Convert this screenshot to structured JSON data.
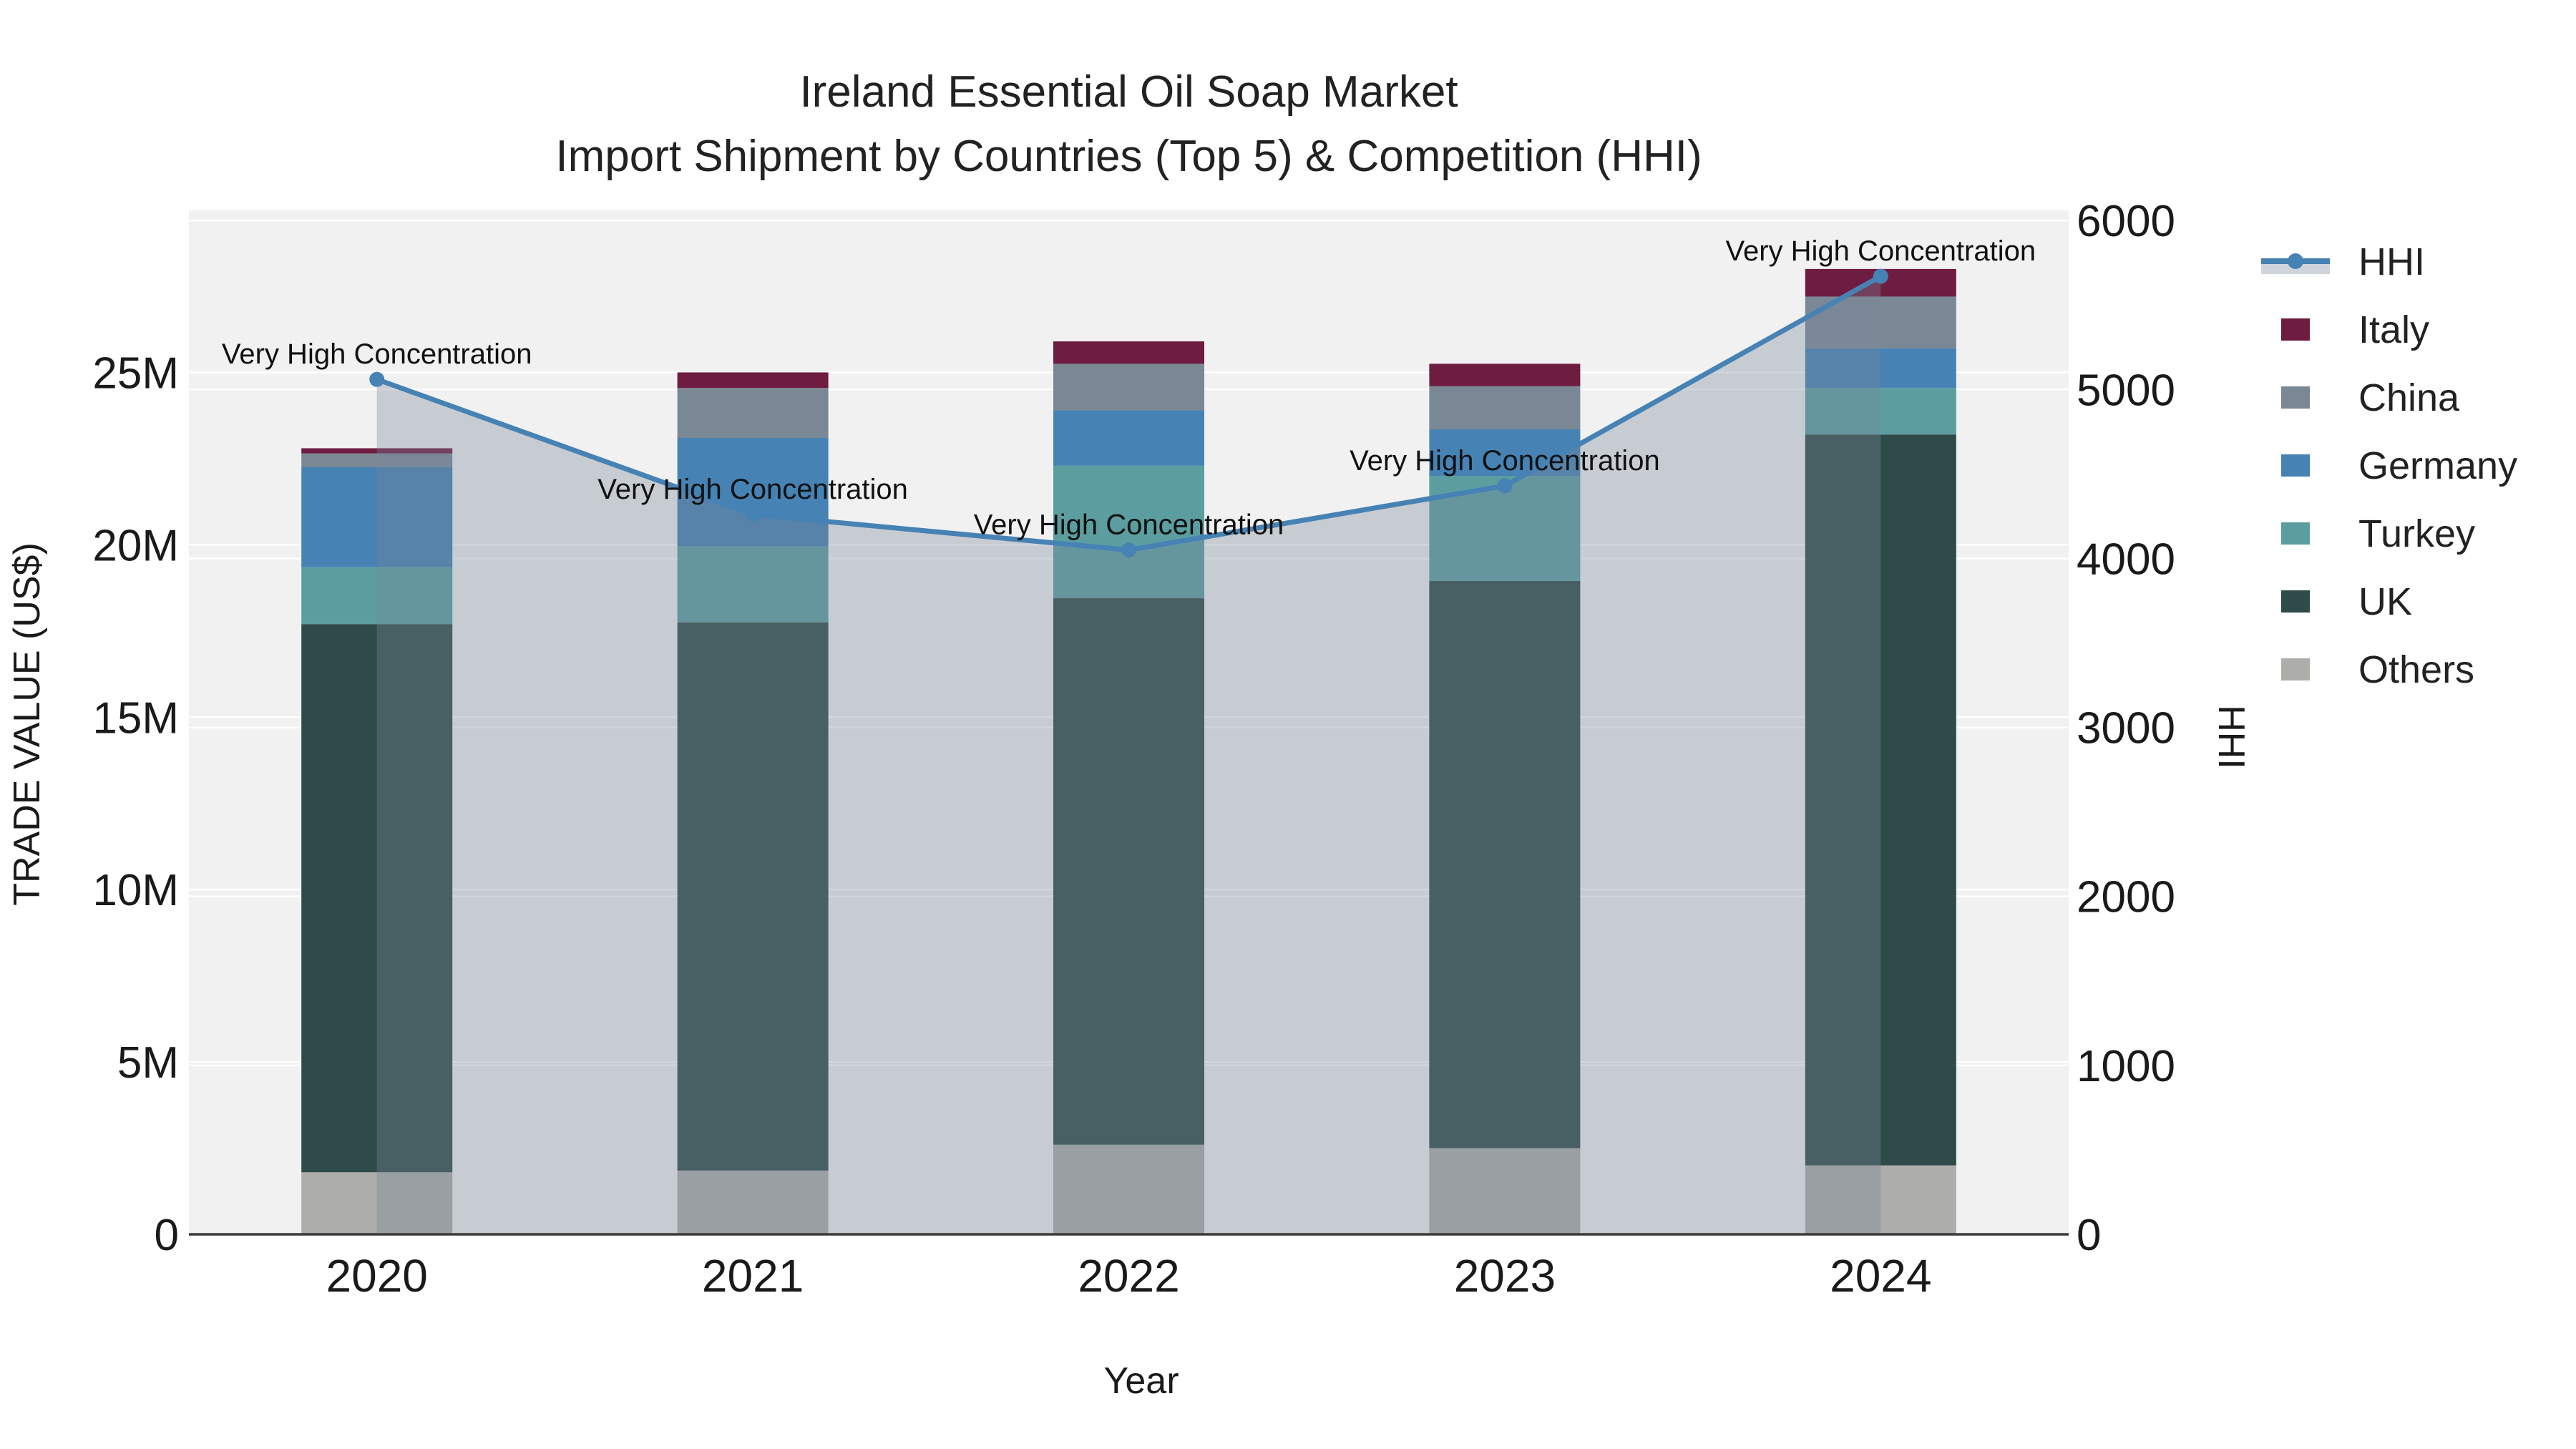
{
  "title": {
    "line1": "Ireland Essential Oil Soap Market",
    "line2": "Import Shipment by Countries (Top 5) & Competition (HHI)"
  },
  "axes": {
    "left": {
      "title": "TRADE VALUE (US$)",
      "tick_labels": [
        "0",
        "5M",
        "10M",
        "15M",
        "20M",
        "25M"
      ],
      "tick_values_musd": [
        0,
        5,
        10,
        15,
        20,
        25
      ],
      "max_musd": 29.7
    },
    "right": {
      "title": "HHI",
      "tick_labels": [
        "0",
        "1000",
        "2000",
        "3000",
        "4000",
        "5000",
        "6000"
      ],
      "tick_values": [
        0,
        1000,
        2000,
        3000,
        4000,
        5000,
        6000
      ],
      "max": 6060
    },
    "x": {
      "title": "Year",
      "categories": [
        "2020",
        "2021",
        "2022",
        "2023",
        "2024"
      ]
    }
  },
  "legend": {
    "items": [
      {
        "label": "HHI",
        "type": "line",
        "color": "#4682B4"
      },
      {
        "label": "Italy",
        "type": "square",
        "color": "#6E1C3F"
      },
      {
        "label": "China",
        "type": "square",
        "color": "#7A8896"
      },
      {
        "label": "Germany",
        "type": "square",
        "color": "#4682B4"
      },
      {
        "label": "Turkey",
        "type": "square",
        "color": "#5C9EA0"
      },
      {
        "label": "UK",
        "type": "square",
        "color": "#2E4B49"
      },
      {
        "label": "Others",
        "type": "square",
        "color": "#ADADAA"
      }
    ]
  },
  "annotation_text": "Very High Concentration",
  "chart_data": {
    "type": "bar",
    "subtype": "stacked-bars-with-line-overlay",
    "title": "Ireland Essential Oil Soap Market — Import Shipment by Countries (Top 5) & Competition (HHI)",
    "xlabel": "Year",
    "ylabel_left": "TRADE VALUE (US$)",
    "ylabel_right": "HHI",
    "categories": [
      "2020",
      "2021",
      "2022",
      "2023",
      "2024"
    ],
    "bar_unit": "million US$",
    "stack_order_bottom_to_top": [
      "Others",
      "UK",
      "Turkey",
      "Germany",
      "China",
      "Italy"
    ],
    "series": [
      {
        "name": "Others",
        "color": "#ADADAA",
        "values": [
          1.8,
          1.85,
          2.6,
          2.5,
          2.0
        ]
      },
      {
        "name": "UK",
        "color": "#2E4B49",
        "values": [
          15.9,
          15.9,
          15.85,
          16.45,
          21.2
        ]
      },
      {
        "name": "Turkey",
        "color": "#5C9EA0",
        "values": [
          1.65,
          2.2,
          3.85,
          3.05,
          1.35
        ]
      },
      {
        "name": "Germany",
        "color": "#4682B4",
        "values": [
          2.9,
          3.15,
          1.6,
          1.35,
          1.15
        ]
      },
      {
        "name": "China",
        "color": "#7A8896",
        "values": [
          0.4,
          1.45,
          1.35,
          1.25,
          1.5
        ]
      },
      {
        "name": "Italy",
        "color": "#6E1C3F",
        "values": [
          0.15,
          0.45,
          0.65,
          0.65,
          0.8
        ]
      }
    ],
    "bar_totals_musd": [
      22.8,
      25.0,
      25.9,
      25.25,
      28.0
    ],
    "line_series": {
      "name": "HHI",
      "axis": "right",
      "color": "#4682B4",
      "area_fill": "rgba(119,136,153,0.35)",
      "values": [
        5060,
        4260,
        4050,
        4430,
        5670
      ],
      "point_annotations": [
        "Very High Concentration",
        "Very High Concentration",
        "Very High Concentration",
        "Very High Concentration",
        "Very High Concentration"
      ]
    },
    "ylim_left_musd": [
      0,
      29.7
    ],
    "ylim_right": [
      0,
      6060
    ],
    "grid": true,
    "legend_position": "right",
    "plot_background": "#F1F1F2",
    "gridline_color": "#FFFFFF",
    "axis_line_color": "#3B3B3B"
  }
}
